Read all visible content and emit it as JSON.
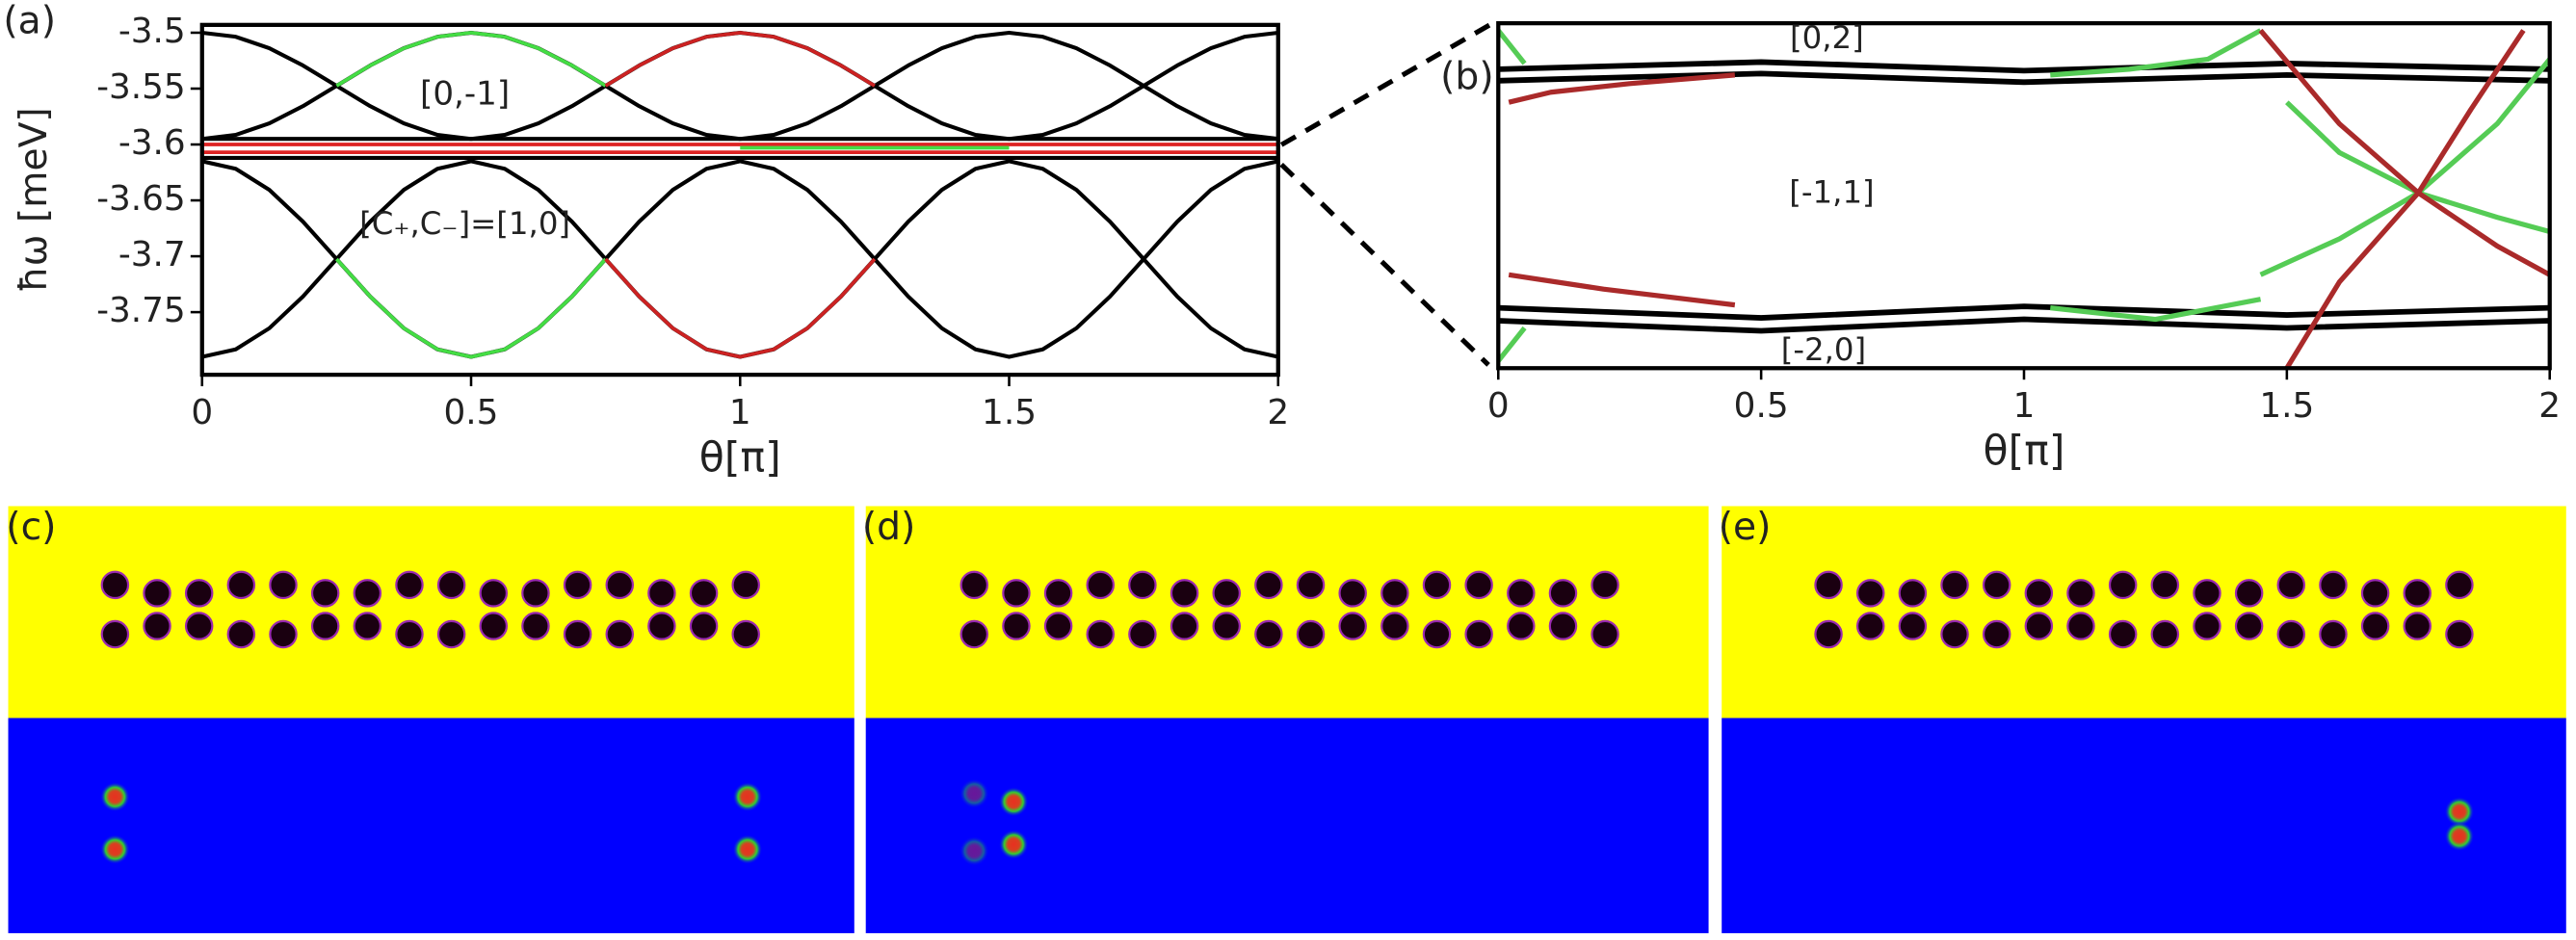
{
  "chart_data": [
    {
      "type": "line",
      "panel_label": "(a)",
      "xlabel": "θ[π]",
      "ylabel": "ħω [meV]",
      "xlim": [
        0,
        2
      ],
      "xticks": [
        0,
        0.5,
        1,
        1.5,
        2
      ],
      "ylim": [
        -3.806,
        -3.493
      ],
      "yticks": [
        -3.5,
        -3.55,
        -3.6,
        -3.65,
        -3.7,
        -3.75
      ],
      "annotations": [
        "[0,-1]",
        "[C₊,C₋]=[1,0]"
      ],
      "x": [
        0,
        0.0625,
        0.125,
        0.1875,
        0.25,
        0.3125,
        0.375,
        0.4375,
        0.5,
        0.5625,
        0.625,
        0.6875,
        0.75,
        0.8125,
        0.875,
        0.9375,
        1,
        1.0625,
        1.125,
        1.1875,
        1.25,
        1.3125,
        1.375,
        1.4375,
        1.5,
        1.5625,
        1.625,
        1.6875,
        1.75,
        1.8125,
        1.875,
        1.9375,
        2
      ],
      "series": [
        {
          "color": "#000000",
          "values": [
            -3.5,
            -3.5036,
            -3.5139,
            -3.5293,
            -3.5475,
            -3.5657,
            -3.5811,
            -3.5914,
            -3.595,
            -3.5914,
            -3.5811,
            -3.5657,
            -3.5475,
            -3.5293,
            -3.5139,
            -3.5036,
            -3.5,
            -3.5036,
            -3.5139,
            -3.5293,
            -3.5475,
            -3.5657,
            -3.5811,
            -3.5914,
            -3.595,
            -3.5914,
            -3.5811,
            -3.5657,
            -3.5475,
            -3.5293,
            -3.5139,
            -3.5036,
            -3.5
          ]
        },
        {
          "color": "#000000",
          "values": [
            -3.595,
            -3.5914,
            -3.5811,
            -3.5657,
            -3.5475,
            -3.5293,
            -3.5139,
            -3.5036,
            -3.5,
            -3.5036,
            -3.5139,
            -3.5293,
            -3.5475,
            -3.5657,
            -3.5811,
            -3.5914,
            -3.595,
            -3.5914,
            -3.5811,
            -3.5657,
            -3.5475,
            -3.5293,
            -3.5139,
            -3.5036,
            -3.5,
            -3.5036,
            -3.5139,
            -3.5293,
            -3.5475,
            -3.5657,
            -3.5811,
            -3.5914,
            -3.595
          ]
        },
        {
          "color": "#000000",
          "values": [
            -3.615,
            -3.6217,
            -3.6406,
            -3.669,
            -3.7025,
            -3.736,
            -3.7644,
            -3.7833,
            -3.79,
            -3.7833,
            -3.7644,
            -3.736,
            -3.7025,
            -3.669,
            -3.6406,
            -3.6217,
            -3.615,
            -3.6217,
            -3.6406,
            -3.669,
            -3.7025,
            -3.736,
            -3.7644,
            -3.7833,
            -3.79,
            -3.7833,
            -3.7644,
            -3.736,
            -3.7025,
            -3.669,
            -3.6406,
            -3.6217,
            -3.615
          ]
        },
        {
          "color": "#000000",
          "values": [
            -3.79,
            -3.7833,
            -3.7644,
            -3.736,
            -3.7025,
            -3.669,
            -3.6406,
            -3.6217,
            -3.615,
            -3.6217,
            -3.6406,
            -3.669,
            -3.7025,
            -3.736,
            -3.7644,
            -3.7833,
            -3.79,
            -3.7833,
            -3.7644,
            -3.736,
            -3.7025,
            -3.669,
            -3.6406,
            -3.6217,
            -3.615,
            -3.6217,
            -3.6406,
            -3.669,
            -3.7025,
            -3.736,
            -3.7644,
            -3.7833,
            -3.79
          ]
        },
        {
          "color": "#000000",
          "x": [
            0,
            2
          ],
          "values": [
            -3.595,
            -3.595
          ]
        },
        {
          "color": "#000000",
          "x": [
            0,
            2
          ],
          "values": [
            -3.612,
            -3.612
          ]
        },
        {
          "color": "#dd2222",
          "x": [
            0,
            2
          ],
          "values": [
            -3.6,
            -3.6
          ]
        },
        {
          "color": "#dd2222",
          "x": [
            0,
            2
          ],
          "values": [
            -3.607,
            -3.607
          ]
        },
        {
          "color": "#44dd44",
          "x": [
            1,
            1.5
          ],
          "values": [
            -3.603,
            -3.603
          ]
        },
        {
          "color": "#44dd44",
          "x": [
            0.25,
            0.3125,
            0.375,
            0.4375,
            0.5,
            0.5625,
            0.625,
            0.6875,
            0.75
          ],
          "values": [
            -3.5475,
            -3.5293,
            -3.5139,
            -3.5036,
            -3.5,
            -3.5036,
            -3.5139,
            -3.5293,
            -3.5475
          ]
        },
        {
          "color": "#cc2222",
          "x": [
            0.75,
            0.8125,
            0.875,
            0.9375,
            1,
            1.0625,
            1.125,
            1.1875,
            1.25
          ],
          "values": [
            -3.5475,
            -3.5293,
            -3.5139,
            -3.5036,
            -3.5,
            -3.5036,
            -3.5139,
            -3.5293,
            -3.5475
          ]
        },
        {
          "color": "#44dd44",
          "x": [
            0.25,
            0.3125,
            0.375,
            0.4375,
            0.5,
            0.5625,
            0.625,
            0.6875,
            0.75
          ],
          "values": [
            -3.7025,
            -3.736,
            -3.7644,
            -3.7833,
            -3.79,
            -3.7833,
            -3.7644,
            -3.736,
            -3.7025
          ]
        },
        {
          "color": "#cc2222",
          "x": [
            0.75,
            0.8125,
            0.875,
            0.9375,
            1,
            1.0625,
            1.125,
            1.1875,
            1.25
          ],
          "values": [
            -3.7025,
            -3.736,
            -3.7644,
            -3.7833,
            -3.79,
            -3.7833,
            -3.7644,
            -3.736,
            -3.7025
          ]
        }
      ]
    },
    {
      "type": "line",
      "panel_label": "(b)",
      "xlabel": "θ[π]",
      "xlim": [
        0,
        2
      ],
      "xticks": [
        0,
        0.5,
        1,
        1.5,
        2
      ],
      "ylim": [
        -3.617,
        -3.593
      ],
      "annotations": [
        "[0,2]",
        "[-1,1]",
        "[-2,0]"
      ],
      "series": [
        {
          "color": "#000000",
          "x": [
            0,
            0.5,
            1,
            1.5,
            2
          ],
          "values": [
            -3.5962,
            -3.5957,
            -3.5963,
            -3.5958,
            -3.5962
          ]
        },
        {
          "color": "#000000",
          "x": [
            0,
            0.5,
            1,
            1.5,
            2
          ],
          "values": [
            -3.597,
            -3.5965,
            -3.5971,
            -3.5966,
            -3.597
          ]
        },
        {
          "color": "#000000",
          "x": [
            0,
            0.5,
            1,
            1.5,
            2
          ],
          "values": [
            -3.6128,
            -3.6135,
            -3.6127,
            -3.6133,
            -3.6128
          ]
        },
        {
          "color": "#000000",
          "x": [
            0,
            0.5,
            1,
            1.5,
            2
          ],
          "values": [
            -3.6137,
            -3.6144,
            -3.6136,
            -3.6142,
            -3.6137
          ]
        },
        {
          "color": "#aa2a2a",
          "x": [
            0.02,
            0.1,
            0.25,
            0.45
          ],
          "values": [
            -3.5985,
            -3.5978,
            -3.5972,
            -3.5966
          ]
        },
        {
          "color": "#55cc55",
          "x": [
            1.05,
            1.2,
            1.35,
            1.45
          ],
          "values": [
            -3.5966,
            -3.5962,
            -3.5955,
            -3.5935
          ]
        },
        {
          "color": "#55cc55",
          "x": [
            1.45,
            1.6,
            1.75,
            1.9,
            2
          ],
          "values": [
            -3.6105,
            -3.608,
            -3.6048,
            -3.6,
            -3.5955
          ]
        },
        {
          "color": "#55cc55",
          "x": [
            1.5,
            1.6,
            1.75,
            1.9,
            2
          ],
          "values": [
            -3.5985,
            -3.602,
            -3.6048,
            -3.6065,
            -3.6075
          ]
        },
        {
          "color": "#aa2a2a",
          "x": [
            1.5,
            1.6,
            1.75,
            1.85,
            1.95
          ],
          "values": [
            -3.617,
            -3.611,
            -3.6048,
            -3.599,
            -3.5935
          ]
        },
        {
          "color": "#aa2a2a",
          "x": [
            1.45,
            1.6,
            1.75,
            1.9,
            2
          ],
          "values": [
            -3.5935,
            -3.6,
            -3.6048,
            -3.6085,
            -3.6105
          ]
        },
        {
          "color": "#aa2a2a",
          "x": [
            0.02,
            0.2,
            0.45
          ],
          "values": [
            -3.6105,
            -3.6115,
            -3.6126
          ]
        },
        {
          "color": "#55cc55",
          "x": [
            1.05,
            1.25,
            1.45
          ],
          "values": [
            -3.6128,
            -3.6136,
            -3.6122
          ]
        },
        {
          "color": "#55cc55",
          "x": [
            0,
            0.05
          ],
          "values": [
            -3.6165,
            -3.6142
          ]
        },
        {
          "color": "#55cc55",
          "x": [
            0,
            0.05
          ],
          "values": [
            -3.5935,
            -3.5958
          ]
        }
      ]
    }
  ],
  "panels": [
    {
      "label": "(c)"
    },
    {
      "label": "(d)"
    },
    {
      "label": "(e)"
    }
  ]
}
